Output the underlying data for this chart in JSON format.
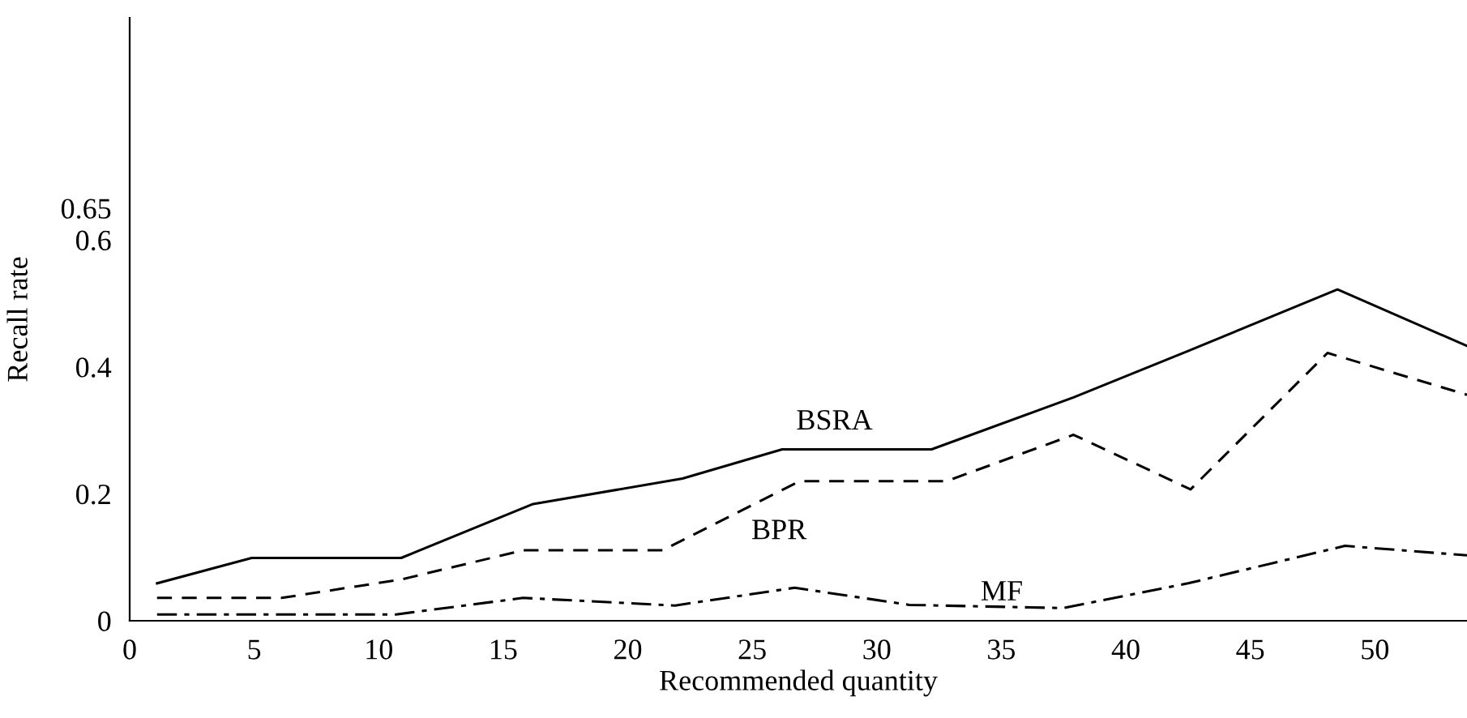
{
  "chart_data": {
    "type": "line",
    "xlabel": "Recommended quantity",
    "ylabel": "Recall rate",
    "xlim": [
      0,
      53.7
    ],
    "ylim": [
      0,
      0.95
    ],
    "xticks": [
      0,
      5,
      10,
      15,
      20,
      25,
      30,
      35,
      40,
      45,
      50
    ],
    "yticks": [
      0,
      0.2,
      0.4,
      0.6,
      0.65
    ],
    "grid": false,
    "legend": false,
    "marker": "none",
    "series": [
      {
        "name": "BSRA",
        "color": "#000000",
        "line_style": "solid",
        "x": [
          1.1,
          4.9,
          10.9,
          16.2,
          22.2,
          26.2,
          32.2,
          37.9,
          42.5,
          48.5,
          53.7
        ],
        "values": [
          0.059,
          0.099,
          0.099,
          0.184,
          0.224,
          0.27,
          0.27,
          0.352,
          0.425,
          0.522,
          0.433
        ]
      },
      {
        "name": "BPR",
        "color": "#000000",
        "line_style": "dashed",
        "x": [
          1.1,
          6.1,
          10.9,
          15.8,
          21.4,
          26.9,
          32.8,
          37.9,
          42.6,
          48.1,
          53.7
        ],
        "values": [
          0.036,
          0.036,
          0.065,
          0.111,
          0.111,
          0.22,
          0.22,
          0.293,
          0.207,
          0.422,
          0.356
        ]
      },
      {
        "name": "MF",
        "color": "#000000",
        "line_style": "dashdot",
        "x": [
          1.1,
          10.7,
          15.8,
          21.9,
          26.7,
          31.3,
          37.5,
          42.5,
          48.8,
          53.7
        ],
        "values": [
          0.01,
          0.01,
          0.036,
          0.024,
          0.052,
          0.025,
          0.02,
          0.059,
          0.118,
          0.103
        ]
      }
    ]
  }
}
